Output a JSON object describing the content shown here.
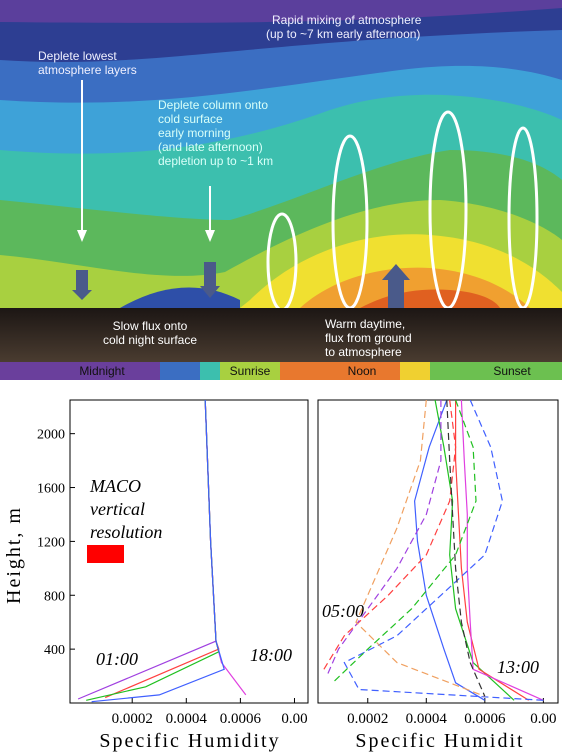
{
  "diagram": {
    "top_note": [
      "Rapid mixing of atmosphere",
      "(up to ~7 km early afternoon)"
    ],
    "left_note": [
      "Deplete lowest",
      "atmosphere layers"
    ],
    "middle_note": [
      "Deplete column onto",
      "cold surface",
      "early morning",
      "(and late afternoon)",
      "depletion up to ~1 km"
    ],
    "night_note": [
      "Slow flux onto",
      "cold night surface"
    ],
    "day_note": [
      "Warm daytime,",
      "flux from ground",
      "to atmosphere"
    ],
    "time_bar": [
      "Midnight",
      "Sunrise",
      "Noon",
      "Sunset"
    ]
  },
  "chart_data": [
    {
      "type": "line",
      "x_label": "Specific Humidity",
      "y_label": "Height, m",
      "xlim": [
        -3e-05,
        0.00085
      ],
      "ylim": [
        0,
        2250
      ],
      "xticks": [
        0.0002,
        0.0004,
        0.0006,
        {
          "value": 0.0008,
          "label": "0.00"
        }
      ],
      "yticks": [
        400,
        800,
        1200,
        1600,
        2000
      ],
      "annotations": [
        "MACO",
        "vertical",
        "resolution",
        "01:00",
        "18:00"
      ],
      "series": [
        {
          "color": "#a040e0",
          "dash": false,
          "x": [
            0.00047,
            0.00049,
            0.00051,
            0.0
          ],
          "y": [
            2250,
            1200,
            460,
            30
          ]
        },
        {
          "color": "#e040e0",
          "dash": false,
          "x": [
            0.00047,
            0.00049,
            0.00051,
            0.00053,
            0.00062
          ],
          "y": [
            2250,
            1200,
            460,
            300,
            60
          ]
        },
        {
          "color": "#ff4040",
          "dash": false,
          "x": [
            0.00047,
            0.00049,
            0.00051,
            0.00052,
            0.0001
          ],
          "y": [
            2250,
            1200,
            460,
            400,
            40
          ]
        },
        {
          "color": "#20c020",
          "dash": false,
          "x": [
            0.00047,
            0.00049,
            0.00051,
            0.00052,
            0.00025,
            3e-05
          ],
          "y": [
            2250,
            1200,
            460,
            380,
            120,
            20
          ]
        },
        {
          "color": "#4060ff",
          "dash": false,
          "x": [
            0.00047,
            0.00049,
            0.00051,
            0.00054,
            0.0003,
            5e-05
          ],
          "y": [
            2250,
            1200,
            460,
            250,
            60,
            10
          ]
        }
      ]
    },
    {
      "type": "line",
      "x_label": "Specific Humidit",
      "xlim": [
        3e-05,
        0.00085
      ],
      "ylim": [
        0,
        2250
      ],
      "xticks": [
        0.0002,
        0.0004,
        0.0006,
        {
          "value": 0.0008,
          "label": "0.00"
        }
      ],
      "annotations": [
        "05:00",
        "13:00"
      ],
      "series": [
        {
          "color": "#4060ff",
          "dash": false,
          "x": [
            0.00047,
            0.00041,
            0.00036,
            0.00037,
            0.0004,
            0.00046,
            0.0005,
            0.0006
          ],
          "y": [
            2250,
            1900,
            1500,
            1200,
            800,
            400,
            150,
            20
          ]
        },
        {
          "color": "#20c020",
          "dash": false,
          "x": [
            0.00043,
            0.00046,
            0.00049,
            0.00048,
            0.0005,
            0.00056,
            0.0007
          ],
          "y": [
            2250,
            1900,
            1500,
            1100,
            700,
            300,
            20
          ]
        },
        {
          "color": "#ff4040",
          "dash": false,
          "x": [
            0.0005,
            0.0005,
            0.00051,
            0.00052,
            0.00054,
            0.00058,
            0.00075
          ],
          "y": [
            2250,
            1800,
            1400,
            1000,
            600,
            250,
            20
          ]
        },
        {
          "color": "#e040e0",
          "dash": false,
          "x": [
            0.00052,
            0.00053,
            0.00054,
            0.00054,
            0.00055,
            0.00056,
            0.0008
          ],
          "y": [
            2250,
            1800,
            1400,
            1000,
            600,
            250,
            20
          ]
        },
        {
          "color": "#4060ff",
          "dash": true,
          "x": [
            0.00055,
            0.00062,
            0.00066,
            0.0006,
            0.00045,
            0.0003,
            0.00012,
            0.00017,
            0.0008
          ],
          "y": [
            2250,
            1900,
            1500,
            1100,
            800,
            500,
            300,
            100,
            20
          ]
        },
        {
          "color": "#20c020",
          "dash": true,
          "x": [
            0.0005,
            0.00056,
            0.00057,
            0.0005,
            0.00035,
            0.0002,
            8e-05
          ],
          "y": [
            2250,
            1900,
            1500,
            1100,
            700,
            400,
            150
          ]
        },
        {
          "color": "#ff4040",
          "dash": true,
          "x": [
            0.00048,
            0.0005,
            0.00048,
            0.0004,
            0.00027,
            0.00012,
            5e-05
          ],
          "y": [
            2250,
            1900,
            1500,
            1100,
            800,
            500,
            250
          ]
        },
        {
          "color": "#a040e0",
          "dash": true,
          "x": [
            0.00045,
            0.00045,
            0.0004,
            0.0003,
            0.0002,
            0.0001,
            6e-05
          ],
          "y": [
            2250,
            1800,
            1400,
            1000,
            700,
            400,
            200
          ]
        },
        {
          "color": "#f0a060",
          "dash": true,
          "x": [
            0.0004,
            0.00038,
            0.0003,
            0.00022,
            0.00016,
            0.0003,
            0.0006
          ],
          "y": [
            2250,
            1800,
            1300,
            900,
            600,
            300,
            50
          ]
        },
        {
          "color": "#333333",
          "dash": true,
          "x": [
            0.00047,
            0.00048,
            0.00049,
            0.0005,
            0.00052,
            0.00055,
            0.0006
          ],
          "y": [
            2250,
            1800,
            1400,
            1000,
            600,
            300,
            50
          ]
        }
      ]
    }
  ]
}
